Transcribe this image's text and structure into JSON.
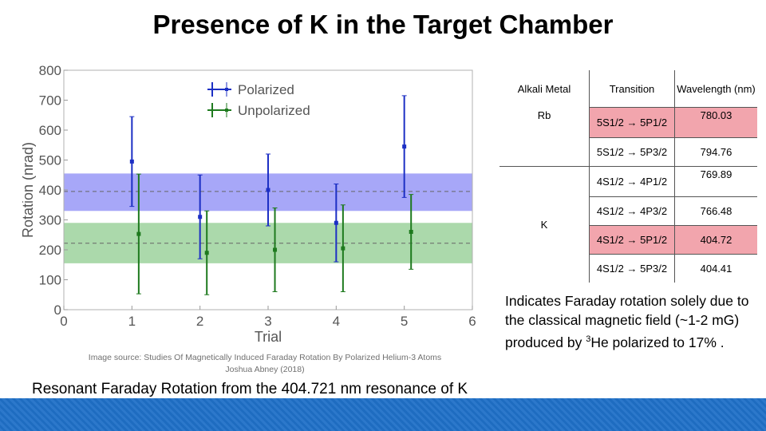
{
  "slide": {
    "title": "Presence of K in the Target Chamber",
    "image_source_line1": "Image source: Studies Of Magnetically Induced Faraday Rotation By Polarized Helium-3 Atoms",
    "image_source_line2": "Joshua Abney (2018)",
    "caption": "Resonant Faraday Rotation from the 404.721 nm resonance of K",
    "note_part1": "Indicates Faraday rotation solely due to the classical magnetic field (~1-2 mG) produced by ",
    "note_sup": "3",
    "note_part2": "He polarized to 17% ."
  },
  "table": {
    "headers": [
      "Alkali Metal",
      "Transition",
      "Wavelength (nm)"
    ],
    "groups": [
      {
        "metal": "Rb",
        "rows": [
          {
            "transition": "5S1/2 → 5P1/2",
            "wavelength": "780.03",
            "highlight": true
          },
          {
            "transition": "5S1/2 → 5P3/2",
            "wavelength": "794.76",
            "highlight": false
          }
        ]
      },
      {
        "metal": "K",
        "rows": [
          {
            "transition": "4S1/2 → 4P1/2",
            "wavelength": "769.89",
            "highlight": false
          },
          {
            "transition": "4S1/2 → 4P3/2",
            "wavelength": "766.48",
            "highlight": false
          },
          {
            "transition": "4S1/2 → 5P1/2",
            "wavelength": "404.72",
            "highlight": true
          },
          {
            "transition": "4S1/2 → 5P3/2",
            "wavelength": "404.41",
            "highlight": false
          }
        ]
      }
    ]
  },
  "chart_data": {
    "type": "scatter",
    "title": "",
    "xlabel": "Trial",
    "ylabel": "Rotation (nrad)",
    "xlim": [
      0,
      6
    ],
    "ylim": [
      0,
      800
    ],
    "xticks": [
      0,
      1,
      2,
      3,
      4,
      5,
      6
    ],
    "yticks": [
      0,
      100,
      200,
      300,
      400,
      500,
      600,
      700,
      800
    ],
    "grid": false,
    "legend": "top-left",
    "bands": [
      {
        "series": "Polarized",
        "y_low": 330,
        "y_high": 455,
        "y_mean": 395,
        "color": "#8a8af5"
      },
      {
        "series": "Unpolarized",
        "y_low": 155,
        "y_high": 290,
        "y_mean": 222,
        "color": "#8fcc8f"
      }
    ],
    "series": [
      {
        "name": "Polarized",
        "color": "#1c2fc4",
        "x": [
          1,
          2,
          3,
          4,
          5
        ],
        "y": [
          495,
          310,
          400,
          290,
          545
        ],
        "err": [
          150,
          140,
          120,
          130,
          170
        ]
      },
      {
        "name": "Unpolarized",
        "color": "#1e7a1e",
        "x": [
          1.1,
          2.1,
          3.1,
          4.1,
          5.1
        ],
        "y": [
          253,
          190,
          200,
          205,
          260
        ],
        "err": [
          200,
          140,
          140,
          145,
          125
        ]
      }
    ]
  }
}
